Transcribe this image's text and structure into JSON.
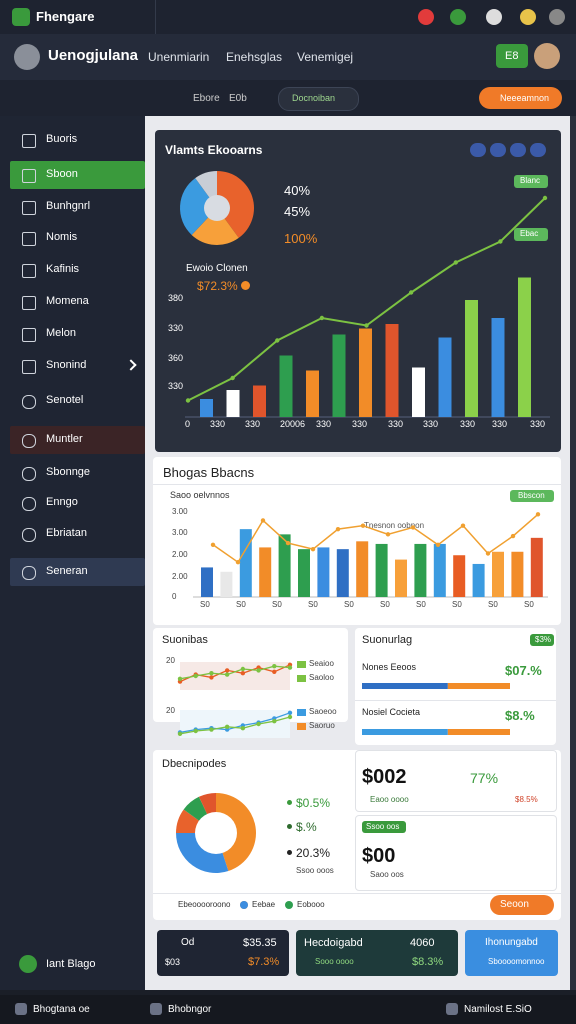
{
  "topbar": {
    "app_name": "Fhengare"
  },
  "header": {
    "user_name": "Uenogjulana",
    "nav": [
      "Unenmiarin",
      "Enehsglas",
      "Venemigej"
    ],
    "button": "E8"
  },
  "toolbar": {
    "items": [
      "Ebore",
      "E0b"
    ],
    "filter": "Docnoiban",
    "action": "Neeeamnon"
  },
  "sidebar": {
    "items": [
      "Buoris",
      "Sboon",
      "Bunhgnrl",
      "Nomis",
      "Kafinis",
      "Momena",
      "Melon",
      "Snonind",
      "Senotel",
      "Muntler",
      "Sbonnge",
      "Enngo",
      "Ebriatan",
      "Seneran"
    ],
    "footer": "Iant Blago"
  },
  "overview": {
    "title": "Vlamts Ekooarns",
    "pie": {
      "values": [
        40,
        22,
        28,
        10
      ],
      "colors": [
        "#e8622c",
        "#f7a03a",
        "#3b9be0",
        "#c9ced6"
      ]
    },
    "pie_labels": [
      "40%",
      "45%",
      "100%"
    ],
    "legend_title": "Ewoio Clonen",
    "legend_value": "$72.3%",
    "tags": [
      "Blanc",
      "Ebac"
    ],
    "y_labels": [
      "380",
      "330",
      "360",
      "330"
    ],
    "x_labels": [
      "0",
      "330",
      "330",
      "20006",
      "330",
      "330",
      "330",
      "330",
      "330",
      "330",
      "330"
    ],
    "bars": {
      "values": [
        12,
        18,
        21,
        41,
        31,
        55,
        59,
        62,
        33,
        53,
        78,
        66,
        93
      ],
      "colors": [
        "#3b8de0",
        "#ffffff",
        "#e0552c",
        "#2e9e4f",
        "#f28c28",
        "#2e9e4f",
        "#f28c28",
        "#e0552c",
        "#ffffff",
        "#3b8de0",
        "#8bd14a",
        "#3b8de0",
        "#8bd14a"
      ]
    },
    "line": {
      "values": [
        11,
        26,
        51,
        66,
        61,
        83,
        103,
        117,
        146
      ],
      "color": "#7cc242"
    }
  },
  "trend": {
    "title": "Bhogas Bbacns",
    "subtitle": "Saoo oelvnnos",
    "tag": "Bbscon",
    "annotation": "Tnesnon oobnon",
    "y_labels": [
      "3.00",
      "3.00",
      "2.00",
      "2.00",
      "0"
    ],
    "x_labels": [
      "S0",
      "S0",
      "S0",
      "S0",
      "S0",
      "S0",
      "S0",
      "S0",
      "S0",
      "S0"
    ],
    "bars": {
      "values": [
        34,
        29,
        78,
        57,
        72,
        55,
        57,
        55,
        64,
        61,
        43,
        61,
        61,
        48,
        38,
        52,
        52,
        68
      ],
      "colors": [
        "#2f6fc4",
        "#e8e8e8",
        "#3b9be0",
        "#f28c28",
        "#2e9e4f",
        "#2e9e4f",
        "#3b8de0",
        "#2f6fc4",
        "#f28c28",
        "#2e9e4f",
        "#f7a03a",
        "#2e9e4f",
        "#3b9be0",
        "#e85d24",
        "#3b9be0",
        "#f7a03a",
        "#f28c28",
        "#e0552c"
      ]
    },
    "line": {
      "values": [
        60,
        40,
        88,
        62,
        55,
        78,
        82,
        72,
        80,
        60,
        82,
        50,
        70,
        95
      ],
      "color": "#f0a030"
    }
  },
  "summary": {
    "title": "Suonibas",
    "y_labels": [
      "20",
      "20"
    ],
    "charts": [
      {
        "lines": [
          {
            "values": [
              30,
              55,
              45,
              70,
              60,
              80,
              65,
              90
            ],
            "color": "#e85d24"
          },
          {
            "values": [
              40,
              50,
              60,
              55,
              75,
              70,
              85,
              80
            ],
            "color": "#7cc242"
          }
        ],
        "legend": [
          "Seaioo",
          "Saoloo"
        ],
        "legend_colors": [
          "#7cc242",
          "#7cc242"
        ]
      },
      {
        "lines": [
          {
            "values": [
              20,
              30,
              35,
              30,
              45,
              55,
              70,
              90
            ],
            "color": "#3b9be0"
          },
          {
            "values": [
              15,
              25,
              30,
              40,
              35,
              50,
              60,
              75
            ],
            "color": "#7cc242"
          }
        ],
        "legend": [
          "Saoeoo",
          "Saoruo"
        ],
        "legend_colors": [
          "#3b9be0",
          "#f28c28"
        ]
      }
    ]
  },
  "progress": {
    "title": "Suonurlag",
    "tag": "$3%",
    "rows": [
      {
        "label": "Nones Eeoos",
        "value": "$07.%",
        "segments": [
          58,
          42
        ],
        "colors": [
          "#2f6fc4",
          "#f28c28"
        ]
      },
      {
        "label": "Nosiel Cocieta",
        "value": "$8.%",
        "segments": [
          58,
          42
        ],
        "colors": [
          "#3b9be0",
          "#f28c28"
        ]
      }
    ]
  },
  "distribution": {
    "title": "Dbecnipodes",
    "donut": {
      "values": [
        45,
        30,
        10,
        8,
        7
      ],
      "colors": [
        "#f28c28",
        "#3b8de0",
        "#e8622c",
        "#2e9e4f",
        "#e0552c"
      ]
    },
    "labels": [
      "$0.5%",
      "$.%",
      "20.3%"
    ],
    "sublabel": "Ssoo ooos",
    "box1": {
      "value": "$002",
      "change": "77%",
      "note": "Eaoo oooo",
      "delta": "$8.5%"
    },
    "box2": {
      "tag": "Ssoo oos",
      "value": "$00",
      "note": "Saoo oos"
    },
    "legend": [
      "Ebeooooroono",
      "Eebae",
      "Eobooo"
    ],
    "legend_colors": [
      "#f28c28",
      "#3b8de0",
      "#2e9e4f"
    ],
    "button": "Seoon"
  },
  "cards": [
    {
      "title": "Od",
      "value": "$35.35",
      "note": "$03",
      "delta": "$7.3%"
    },
    {
      "title": "Hecdoigabd",
      "value": "4060",
      "note": "Sooo oooo",
      "delta": "$8.3%"
    },
    {
      "title": "Ihonungabd",
      "note": "Sboooomonnoo"
    }
  ],
  "bottombar": [
    "Bhogtana oe",
    "Bhobngor",
    "Namilost E.SiO"
  ]
}
